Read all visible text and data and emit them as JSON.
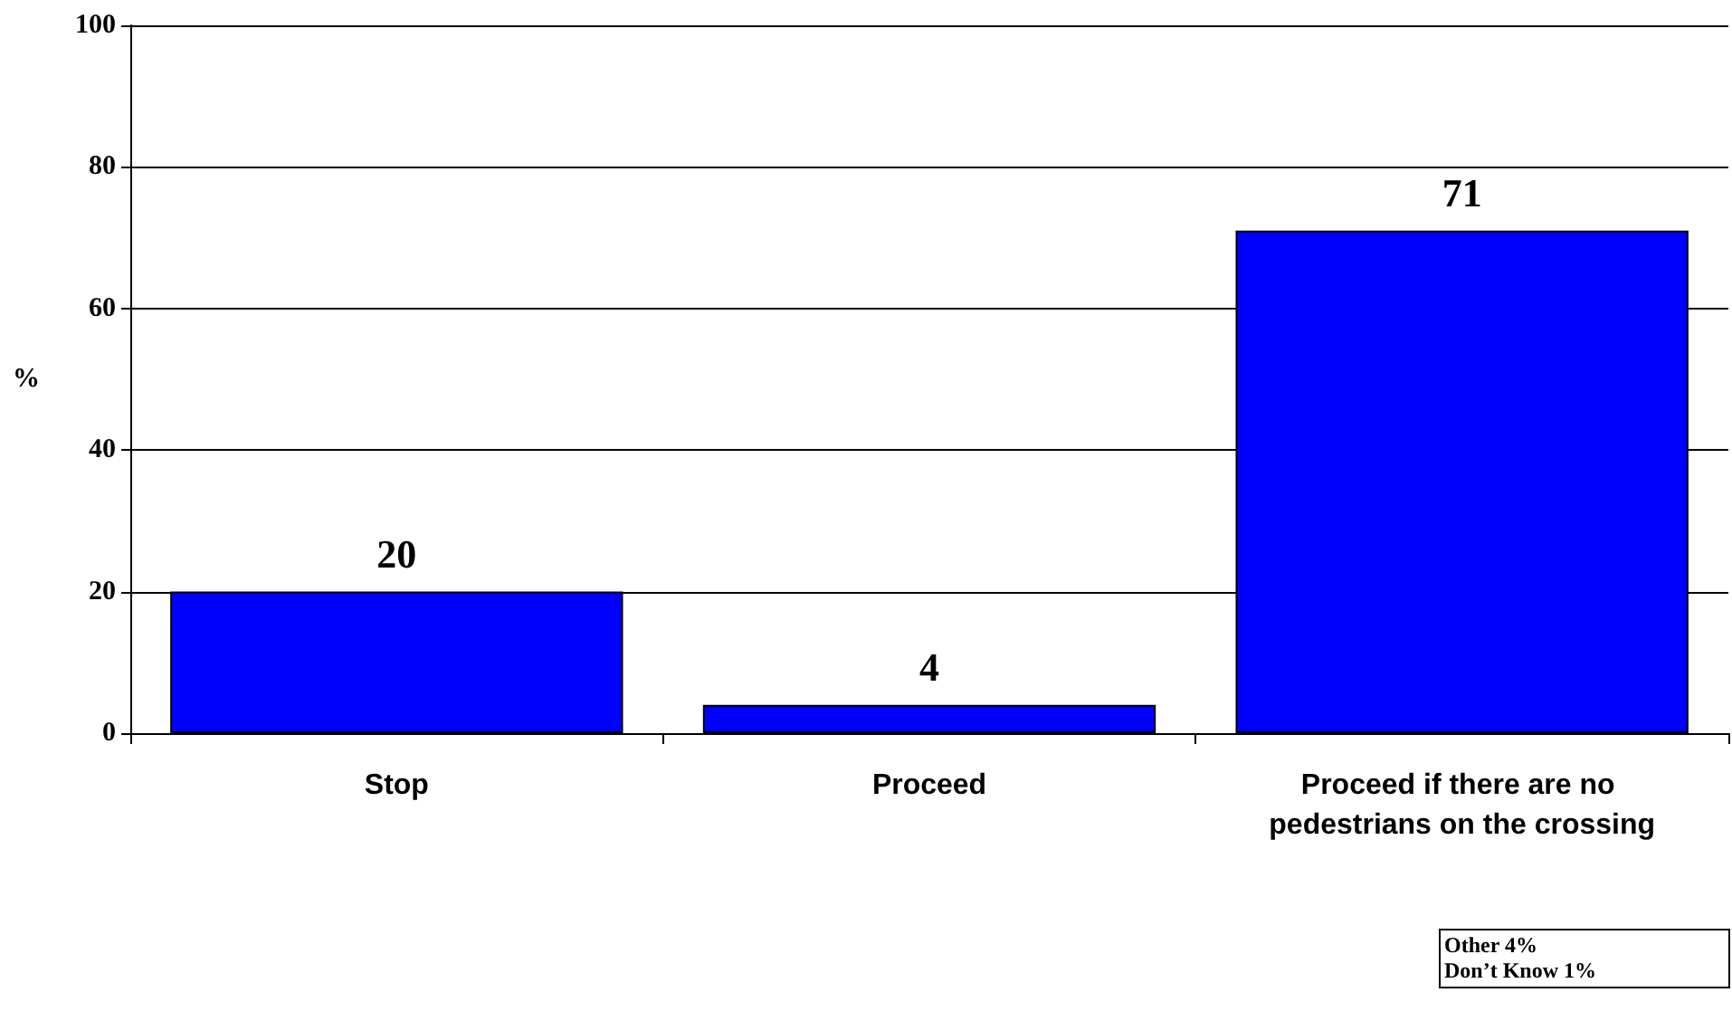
{
  "chart_data": {
    "type": "bar",
    "ylabel": "%",
    "categories": [
      "Stop",
      "Proceed",
      "Proceed if there are no pedestrians on the crossing"
    ],
    "values": [
      20,
      4,
      71
    ],
    "color": "#0000ff",
    "ylim": [
      0,
      100
    ],
    "yticks": [
      0,
      20,
      40,
      60,
      80,
      100
    ],
    "grid": "y",
    "data_labels": true,
    "annotations": [
      "Other 4%",
      "Don’t Know 1%"
    ]
  }
}
